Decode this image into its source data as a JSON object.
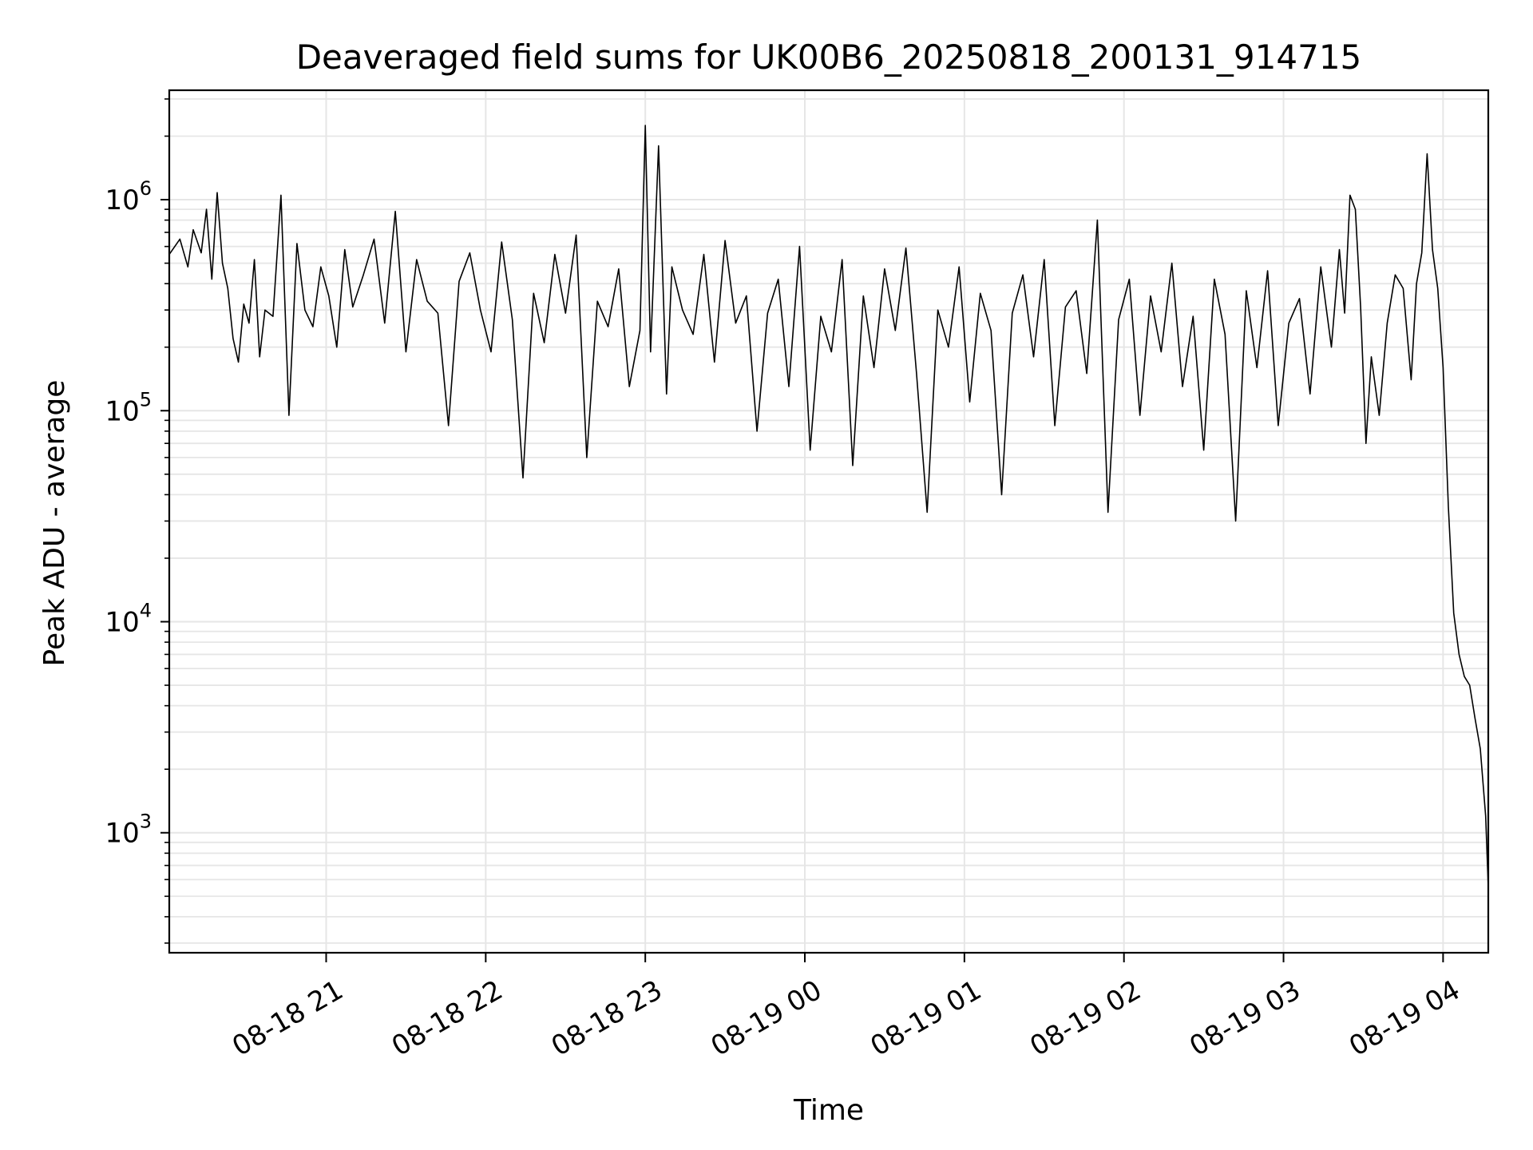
{
  "chart_data": {
    "type": "line",
    "title": "Deaveraged field sums for UK00B6_20250818_200131_914715",
    "xlabel": "Time",
    "ylabel": "Peak ADU - average",
    "yscale": "log",
    "grid": true,
    "line_color": "#000000",
    "xlim": [
      "2025-08-18 20:01",
      "2025-08-19 04:17"
    ],
    "ylim": [
      270,
      3300000
    ],
    "x_ticks": [
      {
        "t": "2025-08-18 21:00",
        "label": "08-18 21"
      },
      {
        "t": "2025-08-18 22:00",
        "label": "08-18 22"
      },
      {
        "t": "2025-08-18 23:00",
        "label": "08-18 23"
      },
      {
        "t": "2025-08-19 00:00",
        "label": "08-19 00"
      },
      {
        "t": "2025-08-19 01:00",
        "label": "08-19 01"
      },
      {
        "t": "2025-08-19 02:00",
        "label": "08-19 02"
      },
      {
        "t": "2025-08-19 03:00",
        "label": "08-19 03"
      },
      {
        "t": "2025-08-19 04:00",
        "label": "08-19 04"
      }
    ],
    "y_ticks": [
      {
        "value": 1000,
        "base": "10",
        "exp": "3"
      },
      {
        "value": 10000,
        "base": "10",
        "exp": "4"
      },
      {
        "value": 100000,
        "base": "10",
        "exp": "5"
      },
      {
        "value": 1000000,
        "base": "10",
        "exp": "6"
      }
    ],
    "series": [
      {
        "x": [
          "2025-08-18 20:01",
          "2025-08-18 20:05",
          "2025-08-18 20:08",
          "2025-08-18 20:10",
          "2025-08-18 20:13",
          "2025-08-18 20:15",
          "2025-08-18 20:17",
          "2025-08-18 20:19",
          "2025-08-18 20:21",
          "2025-08-18 20:23",
          "2025-08-18 20:25",
          "2025-08-18 20:27",
          "2025-08-18 20:29",
          "2025-08-18 20:31",
          "2025-08-18 20:33",
          "2025-08-18 20:35",
          "2025-08-18 20:37",
          "2025-08-18 20:40",
          "2025-08-18 20:43",
          "2025-08-18 20:46",
          "2025-08-18 20:49",
          "2025-08-18 20:52",
          "2025-08-18 20:55",
          "2025-08-18 20:58",
          "2025-08-18 21:01",
          "2025-08-18 21:04",
          "2025-08-18 21:07",
          "2025-08-18 21:10",
          "2025-08-18 21:14",
          "2025-08-18 21:18",
          "2025-08-18 21:22",
          "2025-08-18 21:26",
          "2025-08-18 21:30",
          "2025-08-18 21:34",
          "2025-08-18 21:38",
          "2025-08-18 21:42",
          "2025-08-18 21:46",
          "2025-08-18 21:50",
          "2025-08-18 21:54",
          "2025-08-18 21:58",
          "2025-08-18 22:02",
          "2025-08-18 22:06",
          "2025-08-18 22:10",
          "2025-08-18 22:14",
          "2025-08-18 22:18",
          "2025-08-18 22:22",
          "2025-08-18 22:26",
          "2025-08-18 22:30",
          "2025-08-18 22:34",
          "2025-08-18 22:38",
          "2025-08-18 22:42",
          "2025-08-18 22:46",
          "2025-08-18 22:50",
          "2025-08-18 22:54",
          "2025-08-18 22:58",
          "2025-08-18 23:00",
          "2025-08-18 23:02",
          "2025-08-18 23:05",
          "2025-08-18 23:08",
          "2025-08-18 23:10",
          "2025-08-18 23:14",
          "2025-08-18 23:18",
          "2025-08-18 23:22",
          "2025-08-18 23:26",
          "2025-08-18 23:30",
          "2025-08-18 23:34",
          "2025-08-18 23:38",
          "2025-08-18 23:42",
          "2025-08-18 23:46",
          "2025-08-18 23:50",
          "2025-08-18 23:54",
          "2025-08-18 23:58",
          "2025-08-19 00:02",
          "2025-08-19 00:06",
          "2025-08-19 00:10",
          "2025-08-19 00:14",
          "2025-08-19 00:18",
          "2025-08-19 00:22",
          "2025-08-19 00:26",
          "2025-08-19 00:30",
          "2025-08-19 00:34",
          "2025-08-19 00:38",
          "2025-08-19 00:42",
          "2025-08-19 00:46",
          "2025-08-19 00:50",
          "2025-08-19 00:54",
          "2025-08-19 00:58",
          "2025-08-19 01:02",
          "2025-08-19 01:06",
          "2025-08-19 01:10",
          "2025-08-19 01:14",
          "2025-08-19 01:18",
          "2025-08-19 01:22",
          "2025-08-19 01:26",
          "2025-08-19 01:30",
          "2025-08-19 01:34",
          "2025-08-19 01:38",
          "2025-08-19 01:42",
          "2025-08-19 01:46",
          "2025-08-19 01:50",
          "2025-08-19 01:54",
          "2025-08-19 01:58",
          "2025-08-19 02:02",
          "2025-08-19 02:06",
          "2025-08-19 02:10",
          "2025-08-19 02:14",
          "2025-08-19 02:18",
          "2025-08-19 02:22",
          "2025-08-19 02:26",
          "2025-08-19 02:30",
          "2025-08-19 02:34",
          "2025-08-19 02:38",
          "2025-08-19 02:42",
          "2025-08-19 02:46",
          "2025-08-19 02:50",
          "2025-08-19 02:54",
          "2025-08-19 02:58",
          "2025-08-19 03:02",
          "2025-08-19 03:06",
          "2025-08-19 03:10",
          "2025-08-19 03:14",
          "2025-08-19 03:18",
          "2025-08-19 03:21",
          "2025-08-19 03:23",
          "2025-08-19 03:25",
          "2025-08-19 03:27",
          "2025-08-19 03:29",
          "2025-08-19 03:31",
          "2025-08-19 03:33",
          "2025-08-19 03:36",
          "2025-08-19 03:39",
          "2025-08-19 03:42",
          "2025-08-19 03:45",
          "2025-08-19 03:48",
          "2025-08-19 03:50",
          "2025-08-19 03:52",
          "2025-08-19 03:54",
          "2025-08-19 03:56",
          "2025-08-19 03:58",
          "2025-08-19 04:00",
          "2025-08-19 04:02",
          "2025-08-19 04:04",
          "2025-08-19 04:06",
          "2025-08-19 04:08",
          "2025-08-19 04:10",
          "2025-08-19 04:12",
          "2025-08-19 04:14",
          "2025-08-19 04:16",
          "2025-08-19 04:17"
        ],
        "y": [
          550000,
          650000,
          480000,
          720000,
          560000,
          900000,
          420000,
          1080000,
          500000,
          380000,
          220000,
          170000,
          320000,
          260000,
          520000,
          180000,
          300000,
          280000,
          1050000,
          95000,
          620000,
          300000,
          250000,
          480000,
          350000,
          200000,
          580000,
          310000,
          440000,
          650000,
          260000,
          880000,
          190000,
          520000,
          330000,
          290000,
          85000,
          410000,
          560000,
          300000,
          190000,
          630000,
          270000,
          48000,
          360000,
          210000,
          550000,
          290000,
          680000,
          60000,
          330000,
          250000,
          470000,
          130000,
          240000,
          2250000,
          190000,
          1800000,
          120000,
          480000,
          300000,
          230000,
          550000,
          170000,
          640000,
          260000,
          350000,
          80000,
          290000,
          420000,
          130000,
          600000,
          65000,
          280000,
          190000,
          520000,
          55000,
          350000,
          160000,
          470000,
          240000,
          590000,
          150000,
          33000,
          300000,
          200000,
          480000,
          110000,
          360000,
          240000,
          40000,
          290000,
          440000,
          180000,
          520000,
          85000,
          310000,
          370000,
          150000,
          800000,
          33000,
          270000,
          420000,
          95000,
          350000,
          190000,
          500000,
          130000,
          280000,
          65000,
          420000,
          230000,
          30000,
          370000,
          160000,
          460000,
          85000,
          260000,
          340000,
          120000,
          480000,
          200000,
          580000,
          290000,
          1050000,
          900000,
          310000,
          70000,
          180000,
          95000,
          260000,
          440000,
          380000,
          140000,
          400000,
          560000,
          1650000,
          580000,
          380000,
          160000,
          35000,
          11000,
          7000,
          5500,
          5000,
          3500,
          2500,
          1200,
          550
        ]
      }
    ]
  }
}
